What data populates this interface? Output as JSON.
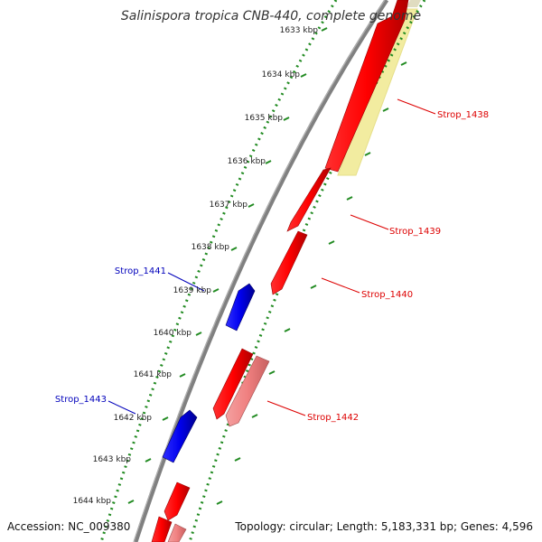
{
  "title": "Salinispora tropica CNB-440, complete genome",
  "accession": "Accession: NC_009380",
  "summary": "Topology: circular; Length: 5,183,331 bp; Genes: 4,596",
  "colors": {
    "forward_gene": "#ff0000",
    "forward_gene_light": "#f08080",
    "reverse_gene": "#0000ee",
    "highlight_band": "#f2eca0",
    "backbone": "#808080",
    "ticks": "#228b22",
    "forward_label": "#dd0000",
    "reverse_label": "#0000bb"
  },
  "ticks": [
    {
      "label": "1633 kbp",
      "kbp": 1633
    },
    {
      "label": "1634 kbp",
      "kbp": 1634
    },
    {
      "label": "1635 kbp",
      "kbp": 1635
    },
    {
      "label": "1636 kbp",
      "kbp": 1636
    },
    {
      "label": "1637 kbp",
      "kbp": 1637
    },
    {
      "label": "1638 kbp",
      "kbp": 1638
    },
    {
      "label": "1639 kbp",
      "kbp": 1639
    },
    {
      "label": "1640 kbp",
      "kbp": 1640
    },
    {
      "label": "1641 kbp",
      "kbp": 1641
    },
    {
      "label": "1642 kbp",
      "kbp": 1642
    },
    {
      "label": "1643 kbp",
      "kbp": 1643
    },
    {
      "label": "1644 kbp",
      "kbp": 1644
    }
  ],
  "gene_labels": [
    {
      "text": "Strop_1438",
      "strand": "forward"
    },
    {
      "text": "Strop_1439",
      "strand": "forward"
    },
    {
      "text": "Strop_1440",
      "strand": "forward"
    },
    {
      "text": "Strop_1441",
      "strand": "reverse"
    },
    {
      "text": "Strop_1442",
      "strand": "forward"
    },
    {
      "text": "Strop_1443",
      "strand": "reverse"
    }
  ]
}
